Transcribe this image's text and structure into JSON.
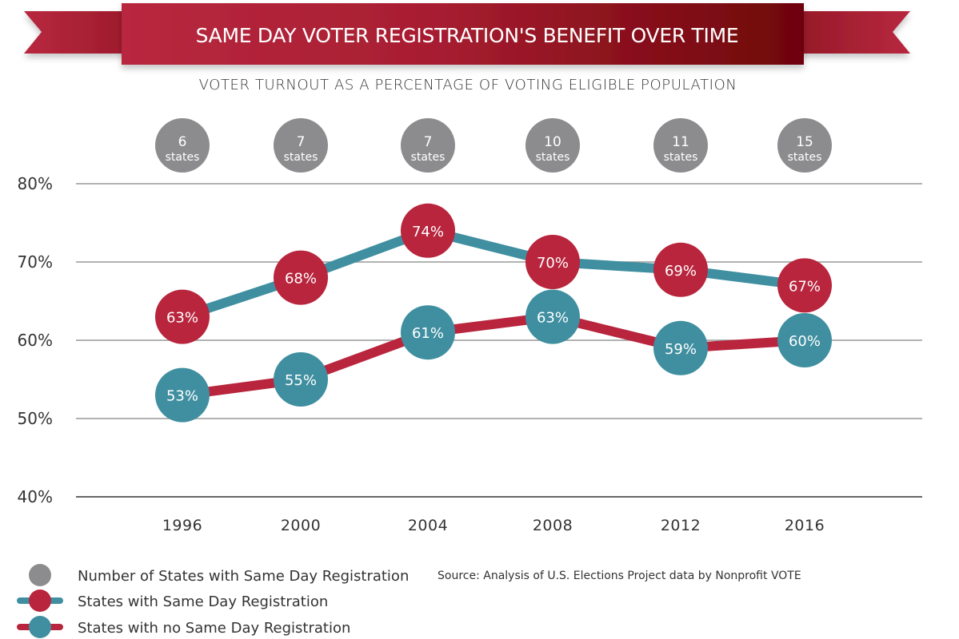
{
  "chart_data": {
    "type": "line",
    "title": "SAME DAY VOTER REGISTRATION'S BENEFIT OVER TIME",
    "subtitle": "VOTER TURNOUT AS A PERCENTAGE OF VOTING ELIGIBLE POPULATION",
    "xlabel": "",
    "ylabel": "",
    "x": [
      "1996",
      "2000",
      "2004",
      "2008",
      "2012",
      "2016"
    ],
    "ylim": [
      40,
      80
    ],
    "yticks": [
      80,
      70,
      60,
      50,
      40
    ],
    "ytick_labels": [
      "80%",
      "70%",
      "60%",
      "50%",
      "40%"
    ],
    "grid": true,
    "series": [
      {
        "name": "States with Same Day Registration",
        "values": [
          63,
          68,
          74,
          70,
          69,
          67
        ],
        "labels": [
          "63%",
          "68%",
          "74%",
          "70%",
          "69%",
          "67%"
        ],
        "line_color": "#3f8fa0",
        "marker_color": "#b8253d"
      },
      {
        "name": "States with no Same Day Registration",
        "values": [
          53,
          55,
          61,
          63,
          59,
          60
        ],
        "labels": [
          "53%",
          "55%",
          "61%",
          "63%",
          "59%",
          "60%"
        ],
        "line_color": "#b8253d",
        "marker_color": "#3f8fa0"
      }
    ],
    "state_counts": {
      "name": "Number of States with Same Day Registration",
      "values": [
        6,
        7,
        7,
        10,
        11,
        15
      ],
      "unit_label": "states",
      "color": "#8c8c8e"
    },
    "legend": {
      "placement": "bottom-left",
      "entries": [
        "Number of States with Same Day Registration",
        "States with Same Day Registration",
        "States with no Same Day Registration"
      ]
    },
    "source": "Source: Analysis of U.S. Elections Project data by Nonprofit VOTE"
  },
  "colors": {
    "banner_light": "#b8283f",
    "banner_dark": "#6e0509",
    "teal": "#3f8fa0",
    "red": "#b8253d",
    "gray": "#8c8c8e",
    "grid": "#999999"
  }
}
